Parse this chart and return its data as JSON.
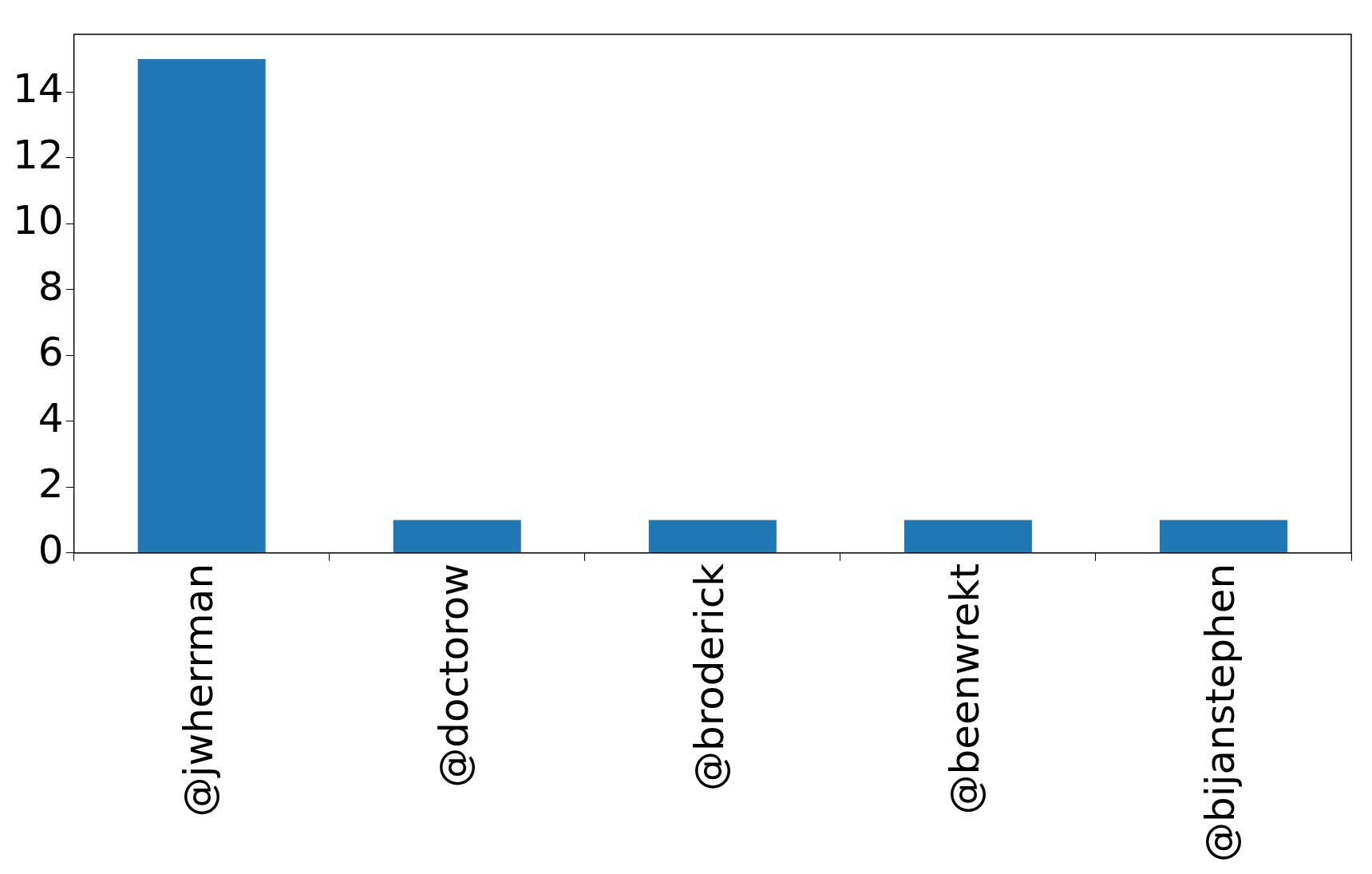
{
  "chart_data": {
    "type": "bar",
    "categories": [
      "@jwherrman",
      "@doctorow",
      "@broderick",
      "@beenwrekt",
      "@bijanstephen"
    ],
    "values": [
      15,
      1,
      1,
      1,
      1
    ],
    "color": "#1f77b4",
    "ylim": [
      0,
      15.75
    ],
    "yticks": [
      0,
      2,
      4,
      6,
      8,
      10,
      12,
      14
    ],
    "grid": false,
    "legend": false
  }
}
